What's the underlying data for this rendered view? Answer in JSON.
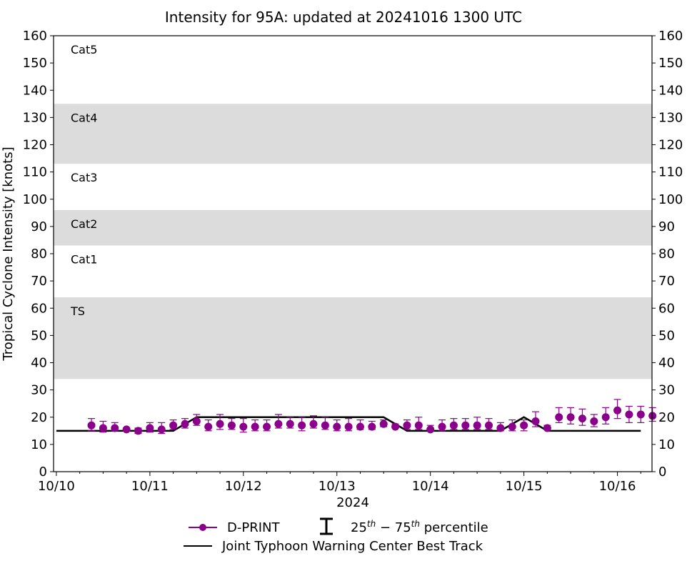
{
  "chart_data": {
    "type": "scatter",
    "title": "Intensity for 95A: updated at 20241016 1300 UTC",
    "xlabel": "2024",
    "ylabel": "Tropical Cyclone Intensity [knots]",
    "ylim": [
      0,
      160
    ],
    "xlim": [
      -0.03,
      6.37
    ],
    "yticks": [
      0,
      10,
      20,
      30,
      40,
      50,
      60,
      70,
      80,
      90,
      100,
      110,
      120,
      130,
      140,
      150,
      160
    ],
    "xticks": [
      {
        "value": 0,
        "label": "10/10"
      },
      {
        "value": 1,
        "label": "10/11"
      },
      {
        "value": 2,
        "label": "10/12"
      },
      {
        "value": 3,
        "label": "10/13"
      },
      {
        "value": 4,
        "label": "10/14"
      },
      {
        "value": 5,
        "label": "10/15"
      },
      {
        "value": 6,
        "label": "10/16"
      }
    ],
    "x_unit": "days since 10/10 0000 UTC",
    "bands": [
      {
        "label": "TS",
        "ymin": 34,
        "ymax": 64,
        "shaded": true
      },
      {
        "label": "Cat1",
        "ymin": 64,
        "ymax": 83,
        "shaded": false
      },
      {
        "label": "Cat2",
        "ymin": 83,
        "ymax": 96,
        "shaded": true
      },
      {
        "label": "Cat3",
        "ymin": 96,
        "ymax": 113,
        "shaded": false
      },
      {
        "label": "Cat4",
        "ymin": 113,
        "ymax": 135,
        "shaded": true
      },
      {
        "label": "Cat5",
        "ymin": 135,
        "ymax": 160,
        "shaded": false
      }
    ],
    "series": [
      {
        "name": "D-PRINT",
        "color": "#8b008b",
        "x": [
          0.375,
          0.5,
          0.625,
          0.75,
          0.875,
          1.0,
          1.125,
          1.25,
          1.375,
          1.5,
          1.625,
          1.75,
          1.875,
          2.0,
          2.125,
          2.25,
          2.375,
          2.5,
          2.625,
          2.75,
          2.875,
          3.0,
          3.125,
          3.25,
          3.375,
          3.5,
          3.625,
          3.75,
          3.875,
          4.0,
          4.125,
          4.25,
          4.375,
          4.5,
          4.625,
          4.75,
          4.875,
          5.0,
          5.125,
          5.25,
          5.375,
          5.5,
          5.625,
          5.75,
          5.875,
          6.0,
          6.125,
          6.25,
          6.375
        ],
        "y": [
          17,
          16,
          16,
          15.5,
          15,
          16,
          15.5,
          17,
          17.5,
          18.5,
          16.5,
          17.5,
          17,
          16.5,
          16.5,
          16.5,
          17.5,
          17.5,
          17,
          17.5,
          17,
          16.5,
          16.5,
          16.5,
          16.5,
          17.5,
          16.5,
          17,
          17,
          15.5,
          16.5,
          17,
          17,
          17,
          17,
          16,
          16.5,
          17,
          18.5,
          16,
          20,
          20,
          19.5,
          18.5,
          20,
          22.5,
          21,
          21,
          20.5
        ],
        "q25": [
          15,
          14.5,
          15,
          15,
          14,
          14.5,
          14,
          15.5,
          16,
          17,
          15,
          15.5,
          15.5,
          14.5,
          15,
          15,
          16,
          16,
          15,
          16,
          15.5,
          15,
          15,
          15.5,
          15.5,
          16.5,
          16,
          15.5,
          15.5,
          15,
          15,
          15.5,
          15.5,
          15.5,
          15.5,
          15,
          15,
          15,
          16.5,
          15.5,
          18,
          17.5,
          17,
          16.5,
          17.5,
          19.5,
          18,
          18,
          18.5
        ],
        "q75": [
          19.5,
          18.5,
          18,
          16,
          16,
          18,
          18,
          19,
          19.5,
          21,
          19,
          21,
          19.5,
          19.5,
          19,
          19,
          21,
          20,
          20,
          20.5,
          20,
          19,
          19.5,
          19,
          18.5,
          19,
          17.5,
          19,
          20,
          17,
          19,
          19.5,
          19.5,
          20,
          19.5,
          18,
          19,
          19,
          22,
          17,
          23.5,
          23.5,
          23,
          21,
          23.5,
          26.5,
          24,
          24,
          23.5
        ]
      },
      {
        "name": "Joint Typhoon Warning Center Best Track",
        "color": "#000000",
        "x": [
          0,
          1.25,
          1.5,
          3.5,
          3.75,
          4.75,
          5.0,
          5.25,
          6.25
        ],
        "y": [
          15,
          15,
          20,
          20,
          15,
          15,
          20,
          15,
          15
        ]
      }
    ],
    "legend": {
      "placement": "bottom-center",
      "dprint_label": "D-PRINT",
      "percentile_label": "25",
      "percentile_sup_a": "th",
      "percentile_mid": " − 75",
      "percentile_sup_b": "th",
      "percentile_tail": " percentile",
      "besttrack_label": "Joint Typhoon Warning Center Best Track"
    }
  }
}
